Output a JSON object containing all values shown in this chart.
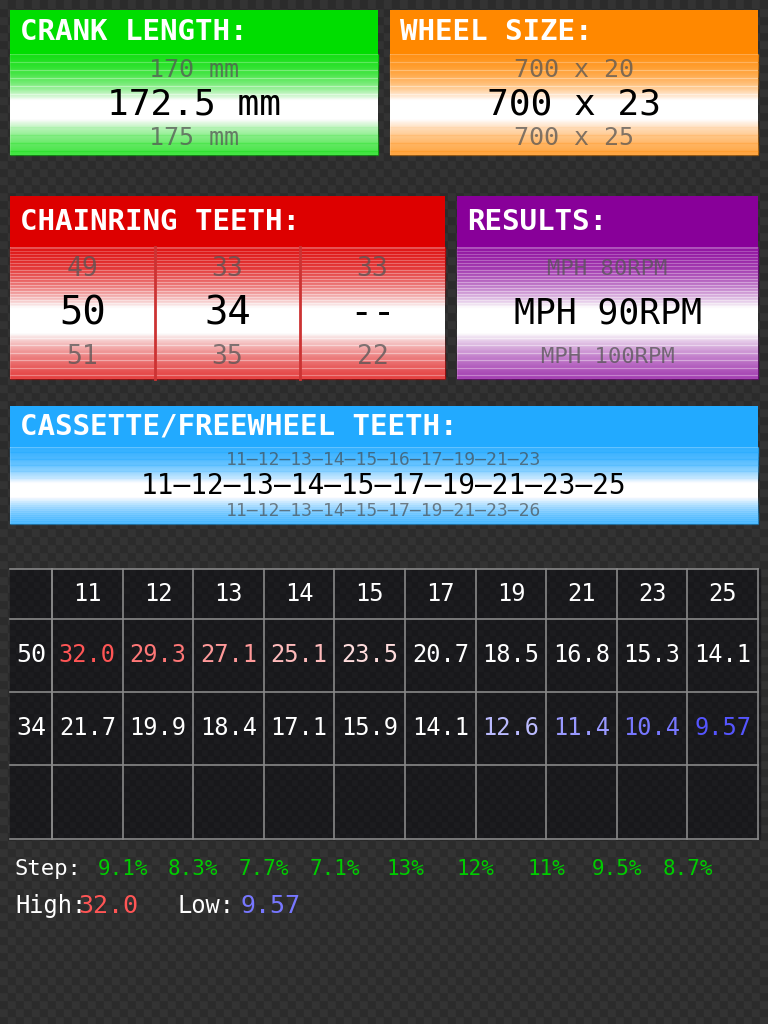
{
  "bg_color": "#2d2d2d",
  "crank_label": "CRANK LENGTH:",
  "crank_label_bg": "#00dd00",
  "crank_values": [
    "170 mm",
    "172.5 mm",
    "175 mm"
  ],
  "crank_selected_idx": 1,
  "wheel_label": "WHEEL SIZE:",
  "wheel_label_bg": "#ff8800",
  "wheel_values": [
    "700 x 20",
    "700 x 23",
    "700 x 25"
  ],
  "wheel_selected_idx": 1,
  "chainring_label": "CHAINRING TEETH:",
  "chainring_label_bg": "#dd0000",
  "chainring_values": [
    [
      "49",
      "33",
      "33"
    ],
    [
      "50",
      "34",
      "--"
    ],
    [
      "51",
      "35",
      "22"
    ]
  ],
  "chainring_selected_row": 1,
  "results_label": "RESULTS:",
  "results_label_bg": "#880099",
  "results_values": [
    "MPH 80RPM",
    "MPH 90RPM",
    "MPH 100RPM"
  ],
  "results_selected_idx": 1,
  "cassette_label": "CASSETTE/FREEWHEEL TEETH:",
  "cassette_label_bg": "#22aaff",
  "cassette_rows": [
    "11–12–13–14–15–16–17–19–21–23",
    "11–12–13–14–15–17–19–21–23–25",
    "11–12–13–14–15–17–19–21–23–26"
  ],
  "cassette_selected_idx": 1,
  "table_header": [
    "11",
    "12",
    "13",
    "14",
    "15",
    "17",
    "19",
    "21",
    "23",
    "25"
  ],
  "table_row1_label": "50",
  "table_row1_values": [
    "32.0",
    "29.3",
    "27.1",
    "25.1",
    "23.5",
    "20.7",
    "18.5",
    "16.8",
    "15.3",
    "14.1"
  ],
  "table_row1_colors": [
    "#ff5555",
    "#ff7777",
    "#ff9999",
    "#ffbbbb",
    "#ffdddd",
    "#ffffff",
    "#ffffff",
    "#ffffff",
    "#ffffff",
    "#ffffff"
  ],
  "table_row2_label": "34",
  "table_row2_values": [
    "21.7",
    "19.9",
    "18.4",
    "17.1",
    "15.9",
    "14.1",
    "12.6",
    "11.4",
    "10.4",
    "9.57"
  ],
  "table_row2_colors": [
    "#ffffff",
    "#ffffff",
    "#ffffff",
    "#ffffff",
    "#ffffff",
    "#ffffff",
    "#bbbbff",
    "#9999ff",
    "#7777ff",
    "#5555ff"
  ],
  "step_label": "Step:",
  "step_values": [
    "9.1%",
    "8.3%",
    "7.7%",
    "7.1%",
    "13%",
    "12%",
    "11%",
    "9.5%",
    "8.7%"
  ],
  "step_color": "#00cc00",
  "high_label": "High:",
  "high_value": "32.0",
  "high_color": "#ff5555",
  "low_label": "Low:",
  "low_value": "9.57",
  "low_color": "#7777ff"
}
